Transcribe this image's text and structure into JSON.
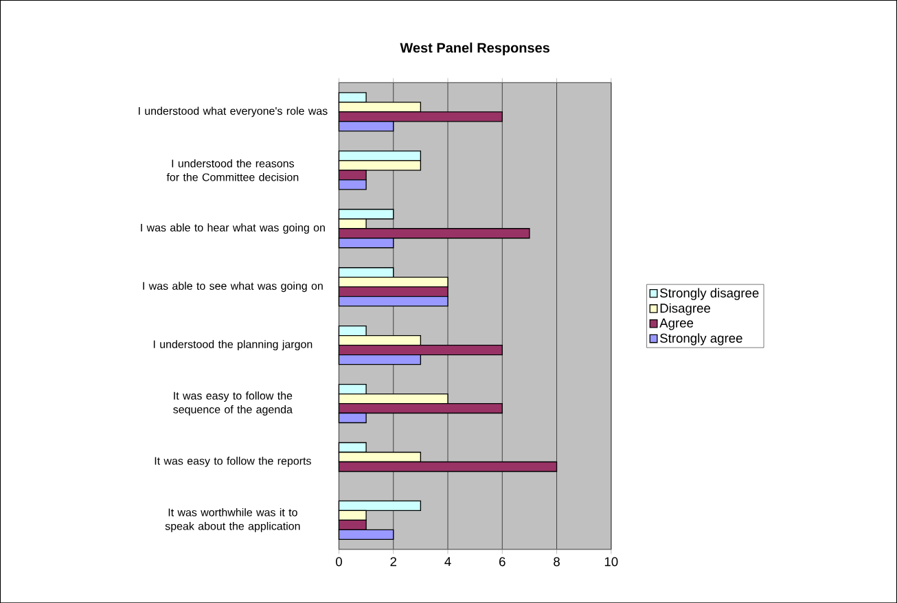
{
  "chart_data": {
    "type": "bar",
    "orientation": "horizontal",
    "title": "West Panel Responses",
    "categories": [
      "I understood what everyone's role was",
      "I understood the reasons for the Committee decision",
      "I was able to hear what was going on",
      "I was able to see what was going on",
      "I understood the planning jargon",
      "It was easy to follow the sequence of the agenda",
      "It was easy to follow the reports",
      "It was worthwhile was it to speak about the application"
    ],
    "series": [
      {
        "name": "Strongly disagree",
        "color": "#ccffff",
        "values": [
          1,
          3,
          2,
          2,
          1,
          1,
          1,
          3
        ]
      },
      {
        "name": "Disagree",
        "color": "#ffffcc",
        "values": [
          3,
          3,
          1,
          4,
          3,
          4,
          3,
          1
        ]
      },
      {
        "name": "Agree",
        "color": "#993366",
        "values": [
          6,
          1,
          7,
          4,
          6,
          6,
          8,
          1
        ]
      },
      {
        "name": "Strongly agree",
        "color": "#9999ff",
        "values": [
          2,
          1,
          2,
          4,
          3,
          1,
          null,
          2
        ]
      }
    ],
    "xlim": [
      0,
      10
    ],
    "xticks": [
      0,
      2,
      4,
      6,
      8,
      10
    ],
    "grid": "x",
    "legend": "right"
  }
}
